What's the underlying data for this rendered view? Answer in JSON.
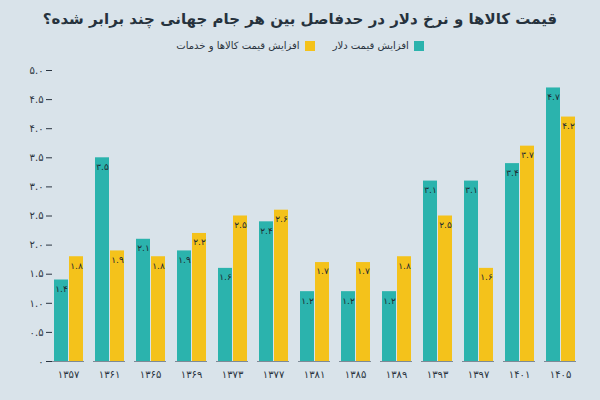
{
  "chart_data": {
    "type": "bar",
    "title": "قیمت کالاها و نرخ دلار در حدفاصل بین هر جام جهانی چند برابر شده؟",
    "categories": [
      "۱۳۵۷",
      "۱۳۶۱",
      "۱۳۶۵",
      "۱۳۶۹",
      "۱۳۷۳",
      "۱۳۷۷",
      "۱۳۸۱",
      "۱۳۸۵",
      "۱۳۸۹",
      "۱۳۹۳",
      "۱۳۹۷",
      "۱۴۰۱",
      "۱۴۰۵"
    ],
    "series": [
      {
        "name": "افزایش قیمت دلار",
        "color": "#2bb3ad",
        "values": [
          1.4,
          3.5,
          2.1,
          1.9,
          1.6,
          2.4,
          1.2,
          1.2,
          1.2,
          3.1,
          3.1,
          3.4,
          4.7
        ],
        "value_labels": [
          "۱.۴",
          "۳.۵",
          "۲.۱",
          "۱.۹",
          "۱.۶",
          "۲.۴",
          "۱.۲",
          "۱.۲",
          "۱.۲",
          "۳.۱",
          "۳.۱",
          "۳.۴",
          "۴.۷"
        ]
      },
      {
        "name": "افزایش قیمت کالاها و خدمات",
        "color": "#f4c21b",
        "values": [
          1.8,
          1.9,
          1.8,
          2.2,
          2.5,
          2.6,
          1.7,
          1.7,
          1.8,
          2.5,
          1.6,
          3.7,
          4.2
        ],
        "value_labels": [
          "۱.۸",
          "۱.۹",
          "۱.۸",
          "۲.۲",
          "۲.۵",
          "۲.۶",
          "۱.۷",
          "۱.۷",
          "۱.۸",
          "۲.۵",
          "۱.۶",
          "۳.۷",
          "۴.۲"
        ]
      }
    ],
    "ylim": [
      0,
      5
    ],
    "yticks": [
      {
        "value": 0,
        "label": "۰"
      },
      {
        "value": 0.5,
        "label": "۰.۵"
      },
      {
        "value": 1,
        "label": "۱.۰"
      },
      {
        "value": 1.5,
        "label": "۱.۵"
      },
      {
        "value": 2,
        "label": "۲.۰"
      },
      {
        "value": 2.5,
        "label": "۲.۵"
      },
      {
        "value": 3,
        "label": "۳.۰"
      },
      {
        "value": 3.5,
        "label": "۳.۵"
      },
      {
        "value": 4,
        "label": "۴.۰"
      },
      {
        "value": 4.5,
        "label": "۴.۵"
      },
      {
        "value": 5,
        "label": "۵.۰"
      }
    ],
    "grid": false,
    "legend": "top",
    "data_labels": true
  }
}
